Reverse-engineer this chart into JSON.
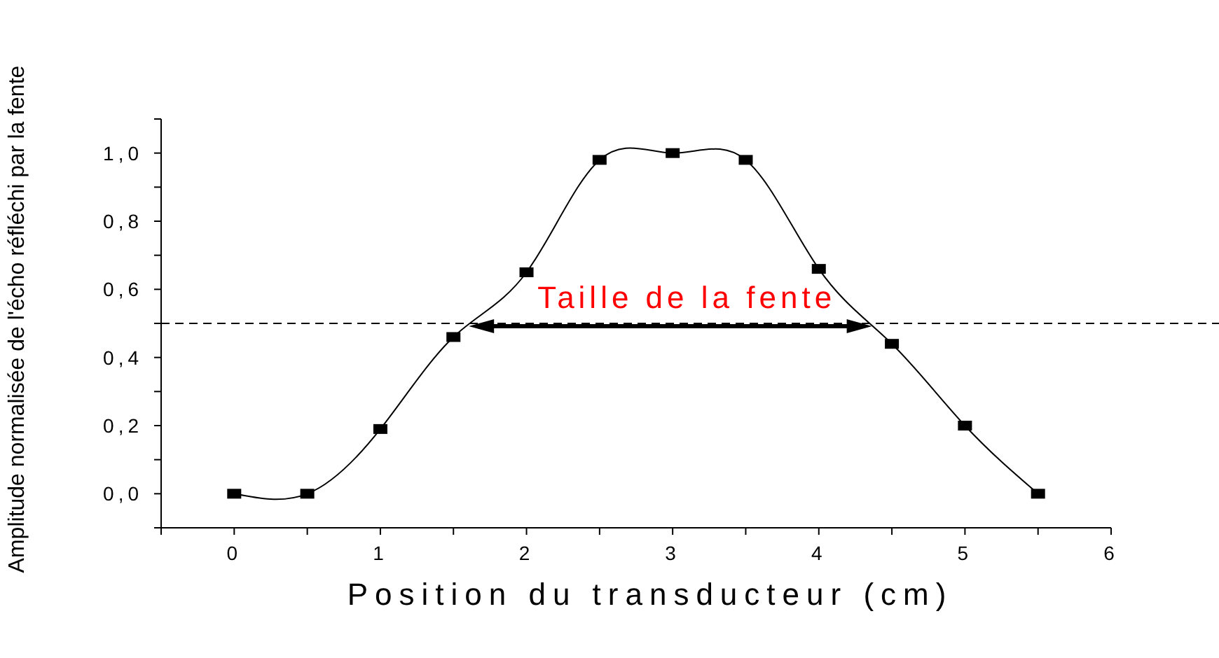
{
  "chart_data": {
    "type": "line",
    "xlabel": "Position du transducteur (cm)",
    "ylabel": "Amplitude normalisée de l'écho réfléchi par la fente",
    "x": [
      0,
      0.5,
      1,
      1.5,
      2,
      2.5,
      3,
      3.5,
      4,
      4.5,
      5,
      5.5
    ],
    "series": [
      {
        "color": "#000000",
        "values": [
          0,
          0,
          0.19,
          0.46,
          0.65,
          0.98,
          1.0,
          0.98,
          0.66,
          0.44,
          0.2,
          0
        ]
      }
    ],
    "marker": "square",
    "line_style": "solid",
    "xlim": [
      -0.5,
      6
    ],
    "ylim": [
      -0.1,
      1.1
    ],
    "xticks": [
      {
        "value": -0.5,
        "label": null
      },
      0,
      {
        "value": 0.5,
        "label": null
      },
      1,
      {
        "value": 1.5,
        "label": null
      },
      2,
      {
        "value": 2.5,
        "label": null
      },
      3,
      {
        "value": 3.5,
        "label": null
      },
      4,
      {
        "value": 4.5,
        "label": null
      },
      5,
      {
        "value": 5.5,
        "label": null
      },
      6
    ],
    "yticks": [
      {
        "value": -0.1,
        "label": null
      },
      {
        "value": 0,
        "label": "0,0"
      },
      {
        "value": 0.1,
        "label": null
      },
      {
        "value": 0.2,
        "label": "0,2"
      },
      {
        "value": 0.3,
        "label": null
      },
      {
        "value": 0.4,
        "label": "0,4"
      },
      {
        "value": 0.5,
        "label": null
      },
      {
        "value": 0.6,
        "label": "0,6"
      },
      {
        "value": 0.7,
        "label": null
      },
      {
        "value": 0.8,
        "label": "0,8"
      },
      {
        "value": 0.9,
        "label": null
      },
      {
        "value": 1.0,
        "label": "1,0"
      },
      {
        "value": 1.1,
        "label": null
      }
    ],
    "ref_lines": [
      {
        "axis": "y",
        "value": 0.5,
        "color": "#000000",
        "line_style": "dashed"
      }
    ],
    "annotations": [
      {
        "text": "Taille de la fente",
        "x": 3,
        "y": 0.5
      }
    ]
  }
}
